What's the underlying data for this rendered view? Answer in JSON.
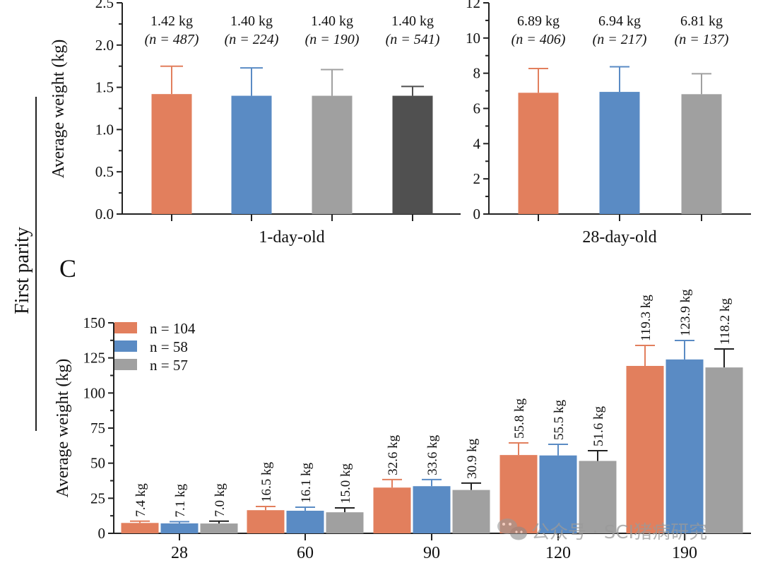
{
  "side_label": "First parity",
  "panel_letter": "C",
  "watermark": "公众号 · SCI猪病研究",
  "colors": {
    "orange": "#E27F5D",
    "blue": "#5A8BC4",
    "grey": "#A0A0A0",
    "dark": "#505050",
    "orange_err": "#E27F5D",
    "blue_err": "#5A8BC4",
    "grey_err": "#A0A0A0",
    "dark_err": "#505050",
    "grey_err_bottom": "#222222"
  },
  "chart_data": [
    {
      "id": "day1",
      "type": "bar",
      "title": "",
      "xlabel": "1-day-old",
      "ylabel": "Average weight (kg)",
      "ylim": [
        0,
        2.5
      ],
      "yticks": [
        "0.0",
        "0.5",
        "1.0",
        "1.5",
        "2.0",
        "2.5"
      ],
      "ytick_values": [
        0,
        0.5,
        1.0,
        1.5,
        2.0,
        2.5
      ],
      "grid": false,
      "bars": [
        {
          "value": 1.42,
          "err_top": 1.75,
          "color_key": "orange",
          "label": "1.42 kg",
          "n_label": "(n = 487)"
        },
        {
          "value": 1.4,
          "err_top": 1.73,
          "color_key": "blue",
          "label": "1.40 kg",
          "n_label": "(n = 224)"
        },
        {
          "value": 1.4,
          "err_top": 1.71,
          "color_key": "grey",
          "label": "1.40 kg",
          "n_label": "(n = 190)"
        },
        {
          "value": 1.4,
          "err_top": 1.51,
          "color_key": "dark",
          "label": "1.40 kg",
          "n_label": "(n = 541)"
        }
      ]
    },
    {
      "id": "day28",
      "type": "bar",
      "title": "",
      "xlabel": "28-day-old",
      "ylabel": "",
      "ylim": [
        0,
        12
      ],
      "yticks": [
        "0",
        "2",
        "4",
        "6",
        "8",
        "10",
        "12"
      ],
      "ytick_values": [
        0,
        2,
        4,
        6,
        8,
        10,
        12
      ],
      "grid": false,
      "bars": [
        {
          "value": 6.89,
          "err_top": 8.27,
          "color_key": "orange",
          "label": "6.89 kg",
          "n_label": "(n = 406)"
        },
        {
          "value": 6.94,
          "err_top": 8.37,
          "color_key": "blue",
          "label": "6.94 kg",
          "n_label": "(n = 217)"
        },
        {
          "value": 6.81,
          "err_top": 7.97,
          "color_key": "grey",
          "label": "6.81 kg",
          "n_label": "(n = 137)"
        }
      ]
    },
    {
      "id": "growth",
      "type": "bar",
      "title": "",
      "xlabel": "",
      "ylabel": "Average weight (kg)",
      "ylim": [
        0,
        150
      ],
      "yticks": [
        "0",
        "25",
        "50",
        "75",
        "100",
        "125",
        "150"
      ],
      "ytick_values": [
        0,
        25,
        50,
        75,
        100,
        125,
        150
      ],
      "grid": false,
      "legend_position": "top-left",
      "categories": [
        "28",
        "60",
        "90",
        "120",
        "190"
      ],
      "series": [
        {
          "name": "n = 104",
          "color_key": "orange",
          "err_color_key": "orange_err",
          "values": [
            7.4,
            16.5,
            32.6,
            55.8,
            119.3
          ],
          "err_top": [
            8.7,
            19.1,
            38.3,
            64.4,
            133.9
          ],
          "labels": [
            "7.4 kg",
            "16.5 kg",
            "32.6 kg",
            "55.8 kg",
            "119.3 kg"
          ]
        },
        {
          "name": "n = 58",
          "color_key": "blue",
          "err_color_key": "blue_err",
          "values": [
            7.1,
            16.1,
            33.6,
            55.5,
            123.9
          ],
          "err_top": [
            8.3,
            18.6,
            38.3,
            63.4,
            137.4
          ],
          "labels": [
            "7.1 kg",
            "16.1 kg",
            "33.6 kg",
            "55.5 kg",
            "123.9 kg"
          ]
        },
        {
          "name": "n = 57",
          "color_key": "grey",
          "err_color_key": "grey_err_bottom",
          "values": [
            7.0,
            15.0,
            30.9,
            51.6,
            118.2
          ],
          "err_top": [
            8.7,
            18.1,
            35.8,
            58.9,
            131.4
          ],
          "labels": [
            "7.0 kg",
            "15.0 kg",
            "30.9 kg",
            "51.6 kg",
            "118.2 kg"
          ]
        }
      ]
    }
  ]
}
